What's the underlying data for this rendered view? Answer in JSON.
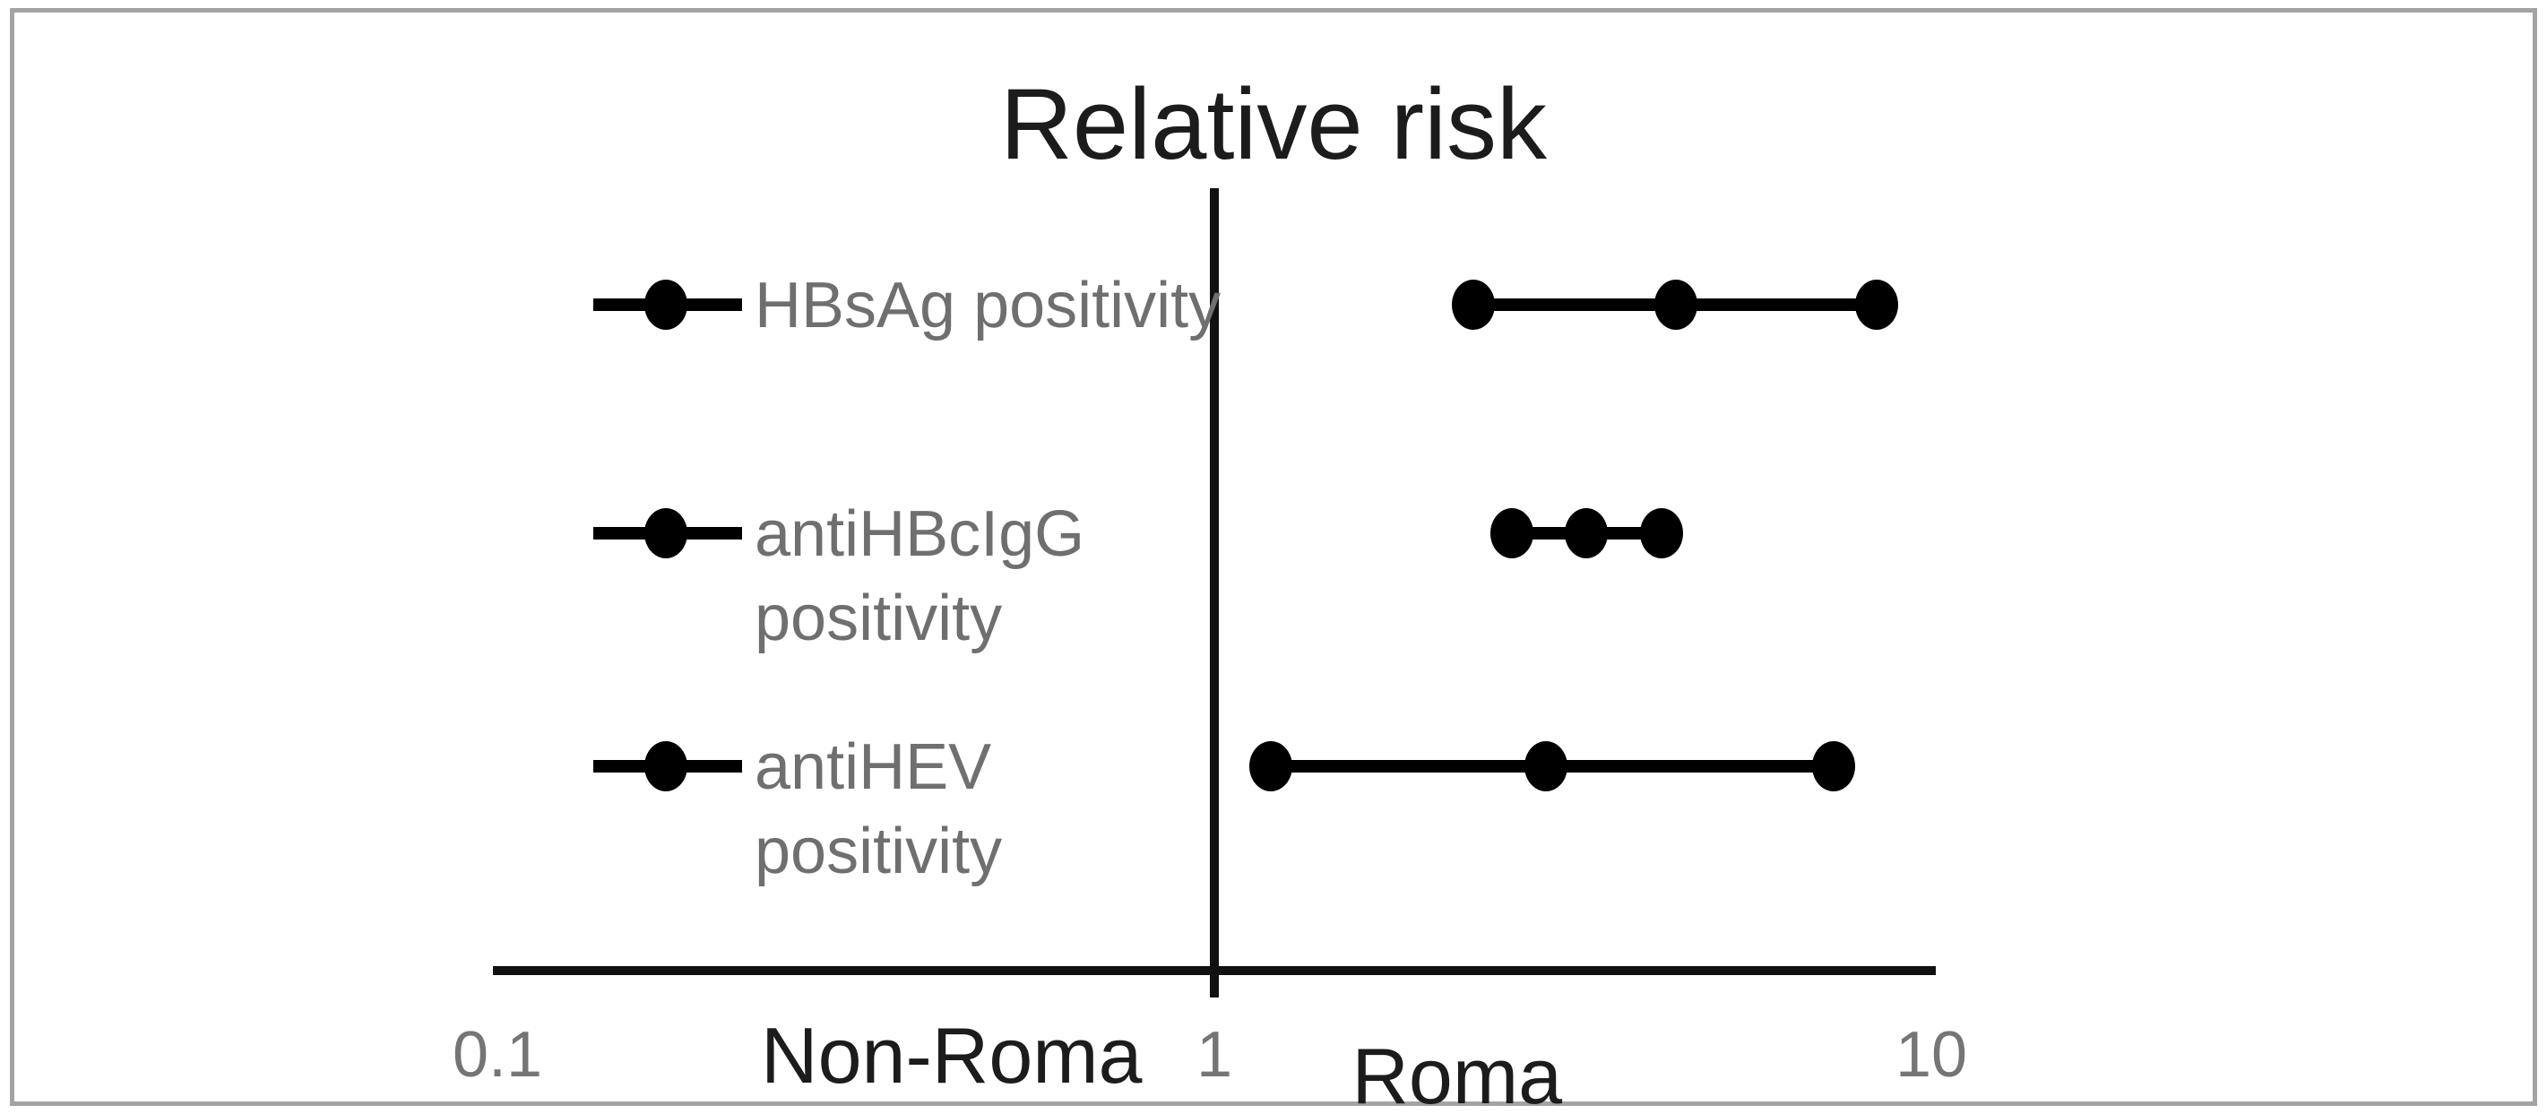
{
  "chart_data": {
    "type": "scatter",
    "subtype": "forest-plot",
    "title": "Relative risk",
    "x_scale": "log",
    "xlim": [
      0.1,
      10
    ],
    "x_ticks": [
      {
        "value": 0.1,
        "label": "0.1"
      },
      {
        "value": 1,
        "label": "1"
      },
      {
        "value": 10,
        "label": "10"
      }
    ],
    "reference_line_x": 1,
    "grid": false,
    "legend_position": "left-of-each-row",
    "direction_labels": [
      {
        "text": "Non-Roma",
        "x_value": 0.43
      },
      {
        "text": "Roma",
        "x_value": 2.18
      }
    ],
    "series": [
      {
        "name": "HBsAg positivity",
        "label_lines": [
          "HBsAg positivity"
        ],
        "rr": 4.4,
        "ci_low": 2.3,
        "ci_high": 8.4
      },
      {
        "name": "antiHBcIgG positivity",
        "label_lines": [
          "antiHBcIgG",
          "positivity"
        ],
        "rr": 3.3,
        "ci_low": 2.6,
        "ci_high": 4.2
      },
      {
        "name": "antiHEV positivity",
        "label_lines": [
          "antiHEV",
          "positivity"
        ],
        "rr": 2.9,
        "ci_low": 1.2,
        "ci_high": 7.3
      }
    ],
    "colors": {
      "marker": "#000000",
      "axis_line": "#111111",
      "title_text": "#1c1c1c",
      "series_label_text": "#6f6f6f",
      "tick_text": "#757575",
      "direction_label_text": "#1c1c1c",
      "frame_border": "#a3a3a3",
      "background": "#ffffff"
    }
  }
}
